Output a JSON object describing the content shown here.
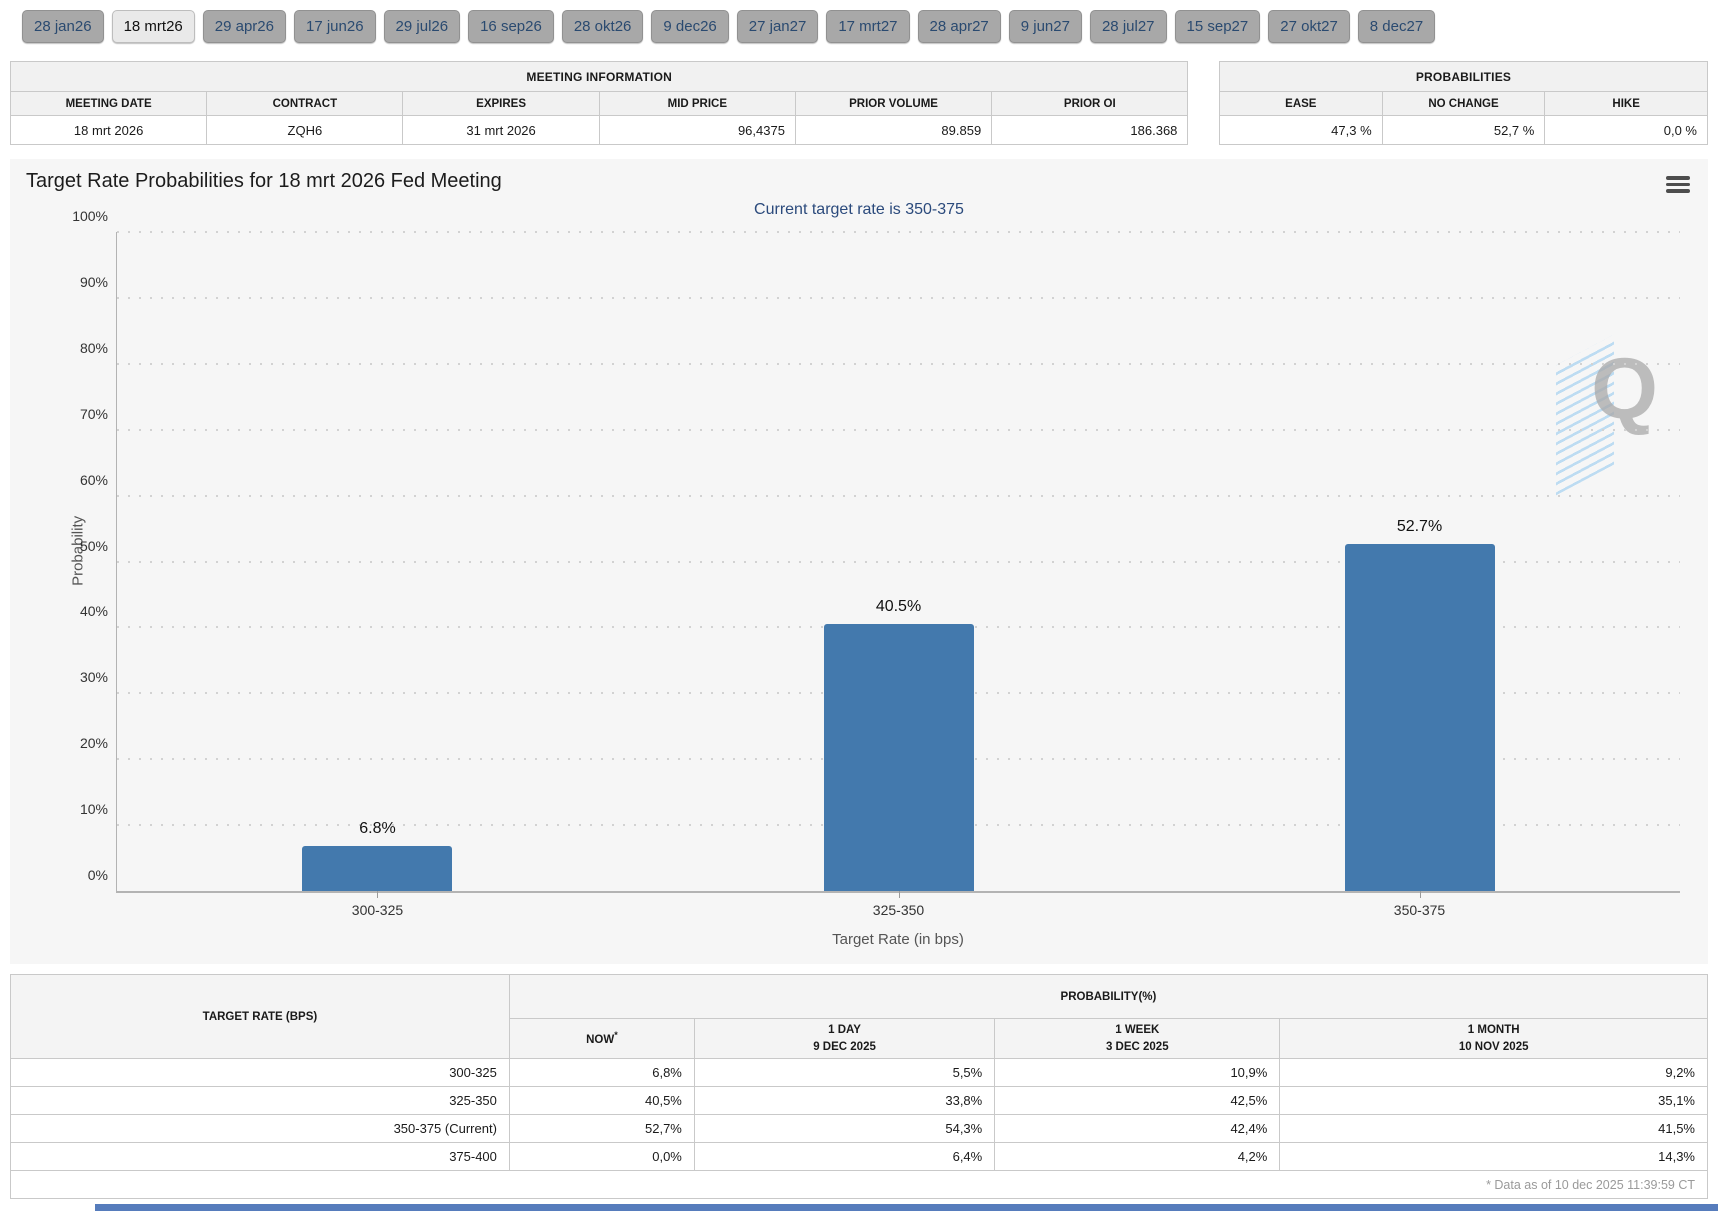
{
  "tabs": {
    "items": [
      "28 jan26",
      "18 mrt26",
      "29 apr26",
      "17 jun26",
      "29 jul26",
      "16 sep26",
      "28 okt26",
      "9 dec26",
      "27 jan27",
      "17 mrt27",
      "28 apr27",
      "9 jun27",
      "28 jul27",
      "15 sep27",
      "27 okt27",
      "8 dec27"
    ],
    "selected": "18 mrt26"
  },
  "meeting_info": {
    "caption": "MEETING INFORMATION",
    "headers": [
      "MEETING DATE",
      "CONTRACT",
      "EXPIRES",
      "MID PRICE",
      "PRIOR VOLUME",
      "PRIOR OI"
    ],
    "values": [
      "18 mrt 2026",
      "ZQH6",
      "31 mrt 2026",
      "96,4375",
      "89.859",
      "186.368"
    ]
  },
  "probabilities_info": {
    "caption": "PROBABILITIES",
    "headers": [
      "EASE",
      "NO CHANGE",
      "HIKE"
    ],
    "values": [
      "47,3 %",
      "52,7 %",
      "0,0 %"
    ]
  },
  "chart": {
    "title": "Target Rate Probabilities for 18 mrt 2026 Fed Meeting",
    "subtitle": "Current target rate is 350-375",
    "menu_icon": "hamburger-menu-icon",
    "watermark_letter": "Q"
  },
  "chart_data": {
    "type": "bar",
    "categories": [
      "300-325",
      "325-350",
      "350-375"
    ],
    "values": [
      6.8,
      40.5,
      52.7
    ],
    "bar_labels": [
      "6.8%",
      "40.5%",
      "52.7%"
    ],
    "title": "Target Rate Probabilities for 18 mrt 2026 Fed Meeting",
    "subtitle": "Current target rate is 350-375",
    "xlabel": "Target Rate (in bps)",
    "ylabel": "Probability",
    "ylim": [
      0,
      100
    ],
    "ytick_step": 10,
    "ytick_suffix": "%",
    "grid": "horizontal-dotted",
    "legend": "none",
    "bar_color": "#4379ad"
  },
  "history_table": {
    "corner_header": "TARGET RATE (BPS)",
    "group_header": "PROBABILITY(%)",
    "col_headers": [
      {
        "line1": "NOW",
        "sup": "*",
        "line2": ""
      },
      {
        "line1": "1 DAY",
        "line2": "9 DEC 2025"
      },
      {
        "line1": "1 WEEK",
        "line2": "3 DEC 2025"
      },
      {
        "line1": "1 MONTH",
        "line2": "10 NOV 2025"
      }
    ],
    "rows": [
      {
        "rate": "300-325",
        "now": "6,8%",
        "day": "5,5%",
        "week": "10,9%",
        "month": "9,2%"
      },
      {
        "rate": "325-350",
        "now": "40,5%",
        "day": "33,8%",
        "week": "42,5%",
        "month": "35,1%"
      },
      {
        "rate": "350-375 (Current)",
        "now": "52,7%",
        "day": "54,3%",
        "week": "42,4%",
        "month": "41,5%"
      },
      {
        "rate": "375-400",
        "now": "0,0%",
        "day": "6,4%",
        "week": "4,2%",
        "month": "14,3%"
      }
    ],
    "footnote": "* Data as of 10 dec 2025 11:39:59 CT"
  },
  "colors": {
    "bar": "#4379ad",
    "now_column_bg": "#f7f7d0",
    "subtitle_text": "#2b4a7c",
    "tab_bg": "#a8a8a8",
    "tab_selected_bg": "#e9e9e9",
    "panel_bg": "#f6f6f6",
    "bottom_bar": "#567cbc"
  }
}
